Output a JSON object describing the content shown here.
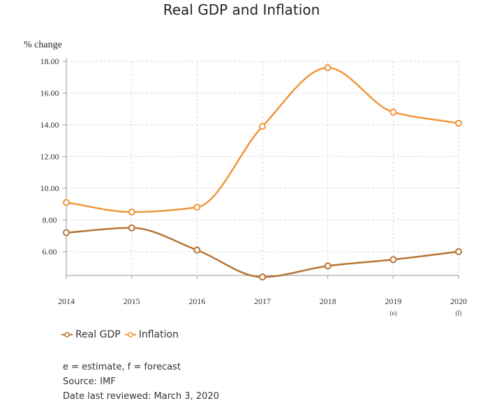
{
  "chart_data": {
    "type": "line",
    "title": "Real GDP and Inflation",
    "ylabel": "% change",
    "xlabel": "",
    "categories": [
      "2014",
      "2015",
      "2016",
      "2017",
      "2018",
      "2019",
      "2020"
    ],
    "category_notes": [
      "",
      "",
      "",
      "",
      "",
      "(e)",
      "(f)"
    ],
    "ylim": [
      4.5,
      18
    ],
    "yticks": [
      "6.00",
      "8.00",
      "10.00",
      "12.00",
      "14.00",
      "16.00",
      "18.00"
    ],
    "grid": true,
    "legend_position": "bottom-left",
    "series": [
      {
        "name": "Real GDP",
        "color": "#b87333",
        "values": [
          7.2,
          7.5,
          6.1,
          4.4,
          5.1,
          5.5,
          6.0
        ]
      },
      {
        "name": "Inflation",
        "color": "#f0963a",
        "values": [
          9.1,
          8.5,
          8.8,
          13.9,
          17.6,
          14.8,
          14.1
        ]
      }
    ]
  },
  "notes": {
    "line1": "e = estimate, f = forecast",
    "line2": "Source: IMF",
    "line3": "Date last reviewed: March 3, 2020"
  }
}
